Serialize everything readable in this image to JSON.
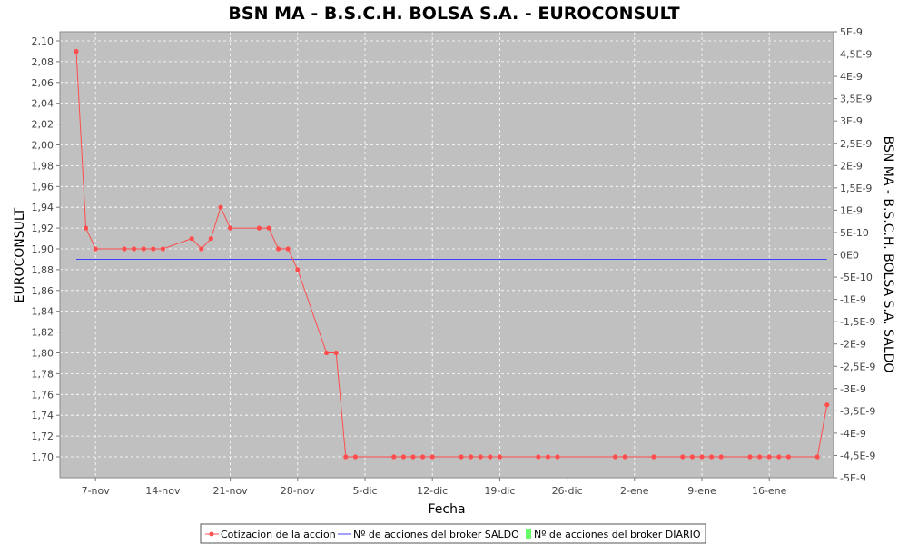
{
  "chart_data": {
    "type": "line",
    "title": "BSN MA - B.S.C.H. BOLSA S.A. - EUROCONSULT",
    "xlabel": "Fecha",
    "ylabel": "EUROCONSULT",
    "y2label": "BSN MA - B.S.C.H. BOLSA S.A. SALDO",
    "x_ticks": [
      "7-nov",
      "14-nov",
      "21-nov",
      "28-nov",
      "5-dic",
      "12-dic",
      "19-dic",
      "26-dic",
      "2-ene",
      "9-ene",
      "16-ene"
    ],
    "y_ticks": [
      "2,10",
      "2,08",
      "2,06",
      "2,04",
      "2,02",
      "2,00",
      "1,98",
      "1,96",
      "1,94",
      "1,92",
      "1,90",
      "1,88",
      "1,86",
      "1,84",
      "1,82",
      "1,80",
      "1,78",
      "1,76",
      "1,74",
      "1,72",
      "1,70"
    ],
    "y2_ticks": [
      "5E-9",
      "4,5E-9",
      "4E-9",
      "3,5E-9",
      "3E-9",
      "2,5E-9",
      "2E-9",
      "1,5E-9",
      "1E-9",
      "5E-10",
      "0E0",
      "-5E-10",
      "-1E-9",
      "-1,5E-9",
      "-2E-9",
      "-2,5E-9",
      "-3E-9",
      "-3,5E-9",
      "-4E-9",
      "-4,5E-9",
      "-5E-9"
    ],
    "ylim": [
      1.68,
      2.11
    ],
    "y2lim": [
      -5e-09,
      5e-09
    ],
    "grid": true,
    "legend_position": "bottom",
    "series": [
      {
        "name": "Cotizacion de la accion",
        "color": "#ff4d4d",
        "axis": "left",
        "points": [
          [
            "2012-11-05",
            2.09
          ],
          [
            "2012-11-06",
            1.92
          ],
          [
            "2012-11-07",
            1.9
          ],
          [
            "2012-11-10",
            1.9
          ],
          [
            "2012-11-11",
            1.9
          ],
          [
            "2012-11-12",
            1.9
          ],
          [
            "2012-11-13",
            1.9
          ],
          [
            "2012-11-14",
            1.9
          ],
          [
            "2012-11-17",
            1.91
          ],
          [
            "2012-11-18",
            1.9
          ],
          [
            "2012-11-19",
            1.91
          ],
          [
            "2012-11-20",
            1.94
          ],
          [
            "2012-11-21",
            1.92
          ],
          [
            "2012-11-24",
            1.92
          ],
          [
            "2012-11-25",
            1.92
          ],
          [
            "2012-11-26",
            1.9
          ],
          [
            "2012-11-27",
            1.9
          ],
          [
            "2012-11-28",
            1.88
          ],
          [
            "2012-12-01",
            1.8
          ],
          [
            "2012-12-02",
            1.8
          ],
          [
            "2012-12-03",
            1.7
          ],
          [
            "2012-12-04",
            1.7
          ],
          [
            "2012-12-08",
            1.7
          ],
          [
            "2012-12-09",
            1.7
          ],
          [
            "2012-12-10",
            1.7
          ],
          [
            "2012-12-11",
            1.7
          ],
          [
            "2012-12-12",
            1.7
          ],
          [
            "2012-12-15",
            1.7
          ],
          [
            "2012-12-16",
            1.7
          ],
          [
            "2012-12-17",
            1.7
          ],
          [
            "2012-12-18",
            1.7
          ],
          [
            "2012-12-19",
            1.7
          ],
          [
            "2012-12-23",
            1.7
          ],
          [
            "2012-12-24",
            1.7
          ],
          [
            "2012-12-25",
            1.7
          ],
          [
            "2012-12-31",
            1.7
          ],
          [
            "2013-01-01",
            1.7
          ],
          [
            "2013-01-04",
            1.7
          ],
          [
            "2013-01-07",
            1.7
          ],
          [
            "2013-01-08",
            1.7
          ],
          [
            "2013-01-09",
            1.7
          ],
          [
            "2013-01-10",
            1.7
          ],
          [
            "2013-01-11",
            1.7
          ],
          [
            "2013-01-14",
            1.7
          ],
          [
            "2013-01-15",
            1.7
          ],
          [
            "2013-01-16",
            1.7
          ],
          [
            "2013-01-17",
            1.7
          ],
          [
            "2013-01-18",
            1.7
          ],
          [
            "2013-01-21",
            1.7
          ],
          [
            "2013-01-22",
            1.75
          ]
        ]
      },
      {
        "name": "Nº de acciones del broker SALDO",
        "color": "#4040ff",
        "axis": "right",
        "points": [
          [
            "2012-11-05",
            0
          ],
          [
            "2013-01-22",
            0
          ]
        ]
      },
      {
        "name": "Nº de acciones del broker DIARIO",
        "color": "#66ff66",
        "axis": "right",
        "points": []
      }
    ]
  }
}
